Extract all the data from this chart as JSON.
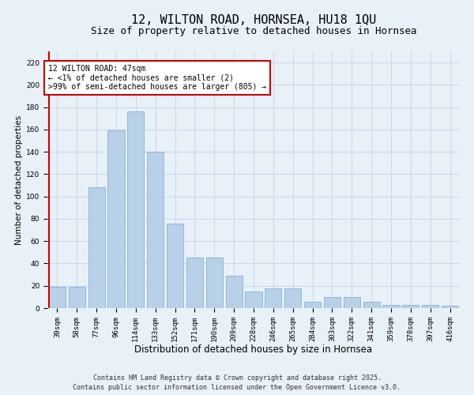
{
  "title": "12, WILTON ROAD, HORNSEA, HU18 1QU",
  "subtitle": "Size of property relative to detached houses in Hornsea",
  "xlabel": "Distribution of detached houses by size in Hornsea",
  "ylabel": "Number of detached properties",
  "categories": [
    "39sqm",
    "58sqm",
    "77sqm",
    "96sqm",
    "114sqm",
    "133sqm",
    "152sqm",
    "171sqm",
    "190sqm",
    "209sqm",
    "228sqm",
    "246sqm",
    "265sqm",
    "284sqm",
    "303sqm",
    "322sqm",
    "341sqm",
    "359sqm",
    "378sqm",
    "397sqm",
    "416sqm"
  ],
  "values": [
    19,
    19,
    108,
    159,
    176,
    140,
    76,
    45,
    45,
    29,
    15,
    18,
    18,
    6,
    10,
    10,
    6,
    3,
    3,
    3,
    2
  ],
  "bar_color": "#b8d0e8",
  "bar_edge_color": "#7aaaca",
  "highlight_color": "#cc0000",
  "annotation_text": "12 WILTON ROAD: 47sqm\n← <1% of detached houses are smaller (2)\n>99% of semi-detached houses are larger (805) →",
  "annotation_box_color": "#ffffff",
  "annotation_box_edge_color": "#cc0000",
  "ylim": [
    0,
    230
  ],
  "yticks": [
    0,
    20,
    40,
    60,
    80,
    100,
    120,
    140,
    160,
    180,
    200,
    220
  ],
  "grid_color": "#c8d8eb",
  "background_color": "#e8f0f8",
  "footer_line1": "Contains HM Land Registry data © Crown copyright and database right 2025.",
  "footer_line2": "Contains public sector information licensed under the Open Government Licence v3.0.",
  "title_fontsize": 11,
  "subtitle_fontsize": 9,
  "xlabel_fontsize": 8.5,
  "ylabel_fontsize": 7.5,
  "tick_fontsize": 6.5,
  "annotation_fontsize": 7,
  "footer_fontsize": 6
}
